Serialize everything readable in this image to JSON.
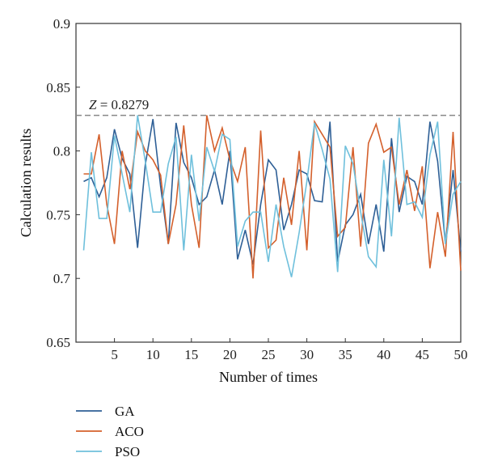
{
  "chart_data": {
    "type": "line",
    "xlabel": "Number of times",
    "ylabel": "Calculation results",
    "xlim": [
      0,
      50
    ],
    "ylim": [
      0.65,
      0.9
    ],
    "x_ticks": [
      5,
      10,
      15,
      20,
      25,
      30,
      35,
      40,
      45,
      50
    ],
    "y_ticks": [
      0.65,
      0.7,
      0.75,
      0.8,
      0.85,
      0.9
    ],
    "x_tick_labels": [
      "5",
      "10",
      "15",
      "20",
      "25",
      "30",
      "35",
      "40",
      "45",
      "50"
    ],
    "y_tick_labels": [
      "0.65",
      "0.7",
      "0.75",
      "0.8",
      "0.85",
      "0.9"
    ],
    "grid": false,
    "legend_position": "bottom-left",
    "reference_line": {
      "value": 0.8279,
      "label_var": "Z",
      "label_rest": " = 0.8279",
      "color": "#888888"
    },
    "x": [
      1,
      2,
      3,
      4,
      5,
      6,
      7,
      8,
      9,
      10,
      11,
      12,
      13,
      14,
      15,
      16,
      17,
      18,
      19,
      20,
      21,
      22,
      23,
      24,
      25,
      26,
      27,
      28,
      29,
      30,
      31,
      32,
      33,
      34,
      35,
      36,
      37,
      38,
      39,
      40,
      41,
      42,
      43,
      44,
      45,
      46,
      47,
      48,
      49,
      50
    ],
    "series": [
      {
        "name": "GA",
        "color": "#2e5f96",
        "values": [
          0.776,
          0.779,
          0.764,
          0.779,
          0.817,
          0.794,
          0.782,
          0.724,
          0.789,
          0.825,
          0.772,
          0.727,
          0.822,
          0.791,
          0.779,
          0.758,
          0.764,
          0.785,
          0.758,
          0.8,
          0.715,
          0.738,
          0.711,
          0.758,
          0.793,
          0.785,
          0.738,
          0.758,
          0.785,
          0.782,
          0.761,
          0.76,
          0.823,
          0.713,
          0.742,
          0.75,
          0.766,
          0.727,
          0.758,
          0.721,
          0.81,
          0.752,
          0.78,
          0.776,
          0.758,
          0.823,
          0.792,
          0.727,
          0.785,
          0.721
        ]
      },
      {
        "name": "ACO",
        "color": "#d4602c",
        "values": [
          0.782,
          0.782,
          0.813,
          0.758,
          0.727,
          0.8,
          0.77,
          0.815,
          0.8,
          0.793,
          0.781,
          0.727,
          0.758,
          0.82,
          0.758,
          0.724,
          0.828,
          0.8,
          0.818,
          0.793,
          0.776,
          0.803,
          0.7,
          0.816,
          0.724,
          0.73,
          0.779,
          0.742,
          0.8,
          0.722,
          0.823,
          0.813,
          0.803,
          0.733,
          0.74,
          0.803,
          0.725,
          0.806,
          0.821,
          0.799,
          0.803,
          0.758,
          0.785,
          0.753,
          0.788,
          0.708,
          0.752,
          0.717,
          0.815,
          0.706
        ]
      },
      {
        "name": "PSO",
        "color": "#6fc0dc",
        "values": [
          0.722,
          0.799,
          0.747,
          0.747,
          0.812,
          0.782,
          0.752,
          0.828,
          0.792,
          0.752,
          0.752,
          0.79,
          0.811,
          0.722,
          0.797,
          0.745,
          0.803,
          0.784,
          0.813,
          0.809,
          0.725,
          0.745,
          0.752,
          0.752,
          0.713,
          0.758,
          0.725,
          0.701,
          0.736,
          0.776,
          0.822,
          0.801,
          0.778,
          0.705,
          0.804,
          0.79,
          0.752,
          0.717,
          0.709,
          0.793,
          0.733,
          0.826,
          0.758,
          0.76,
          0.748,
          0.797,
          0.823,
          0.727,
          0.766,
          0.776
        ]
      }
    ]
  }
}
